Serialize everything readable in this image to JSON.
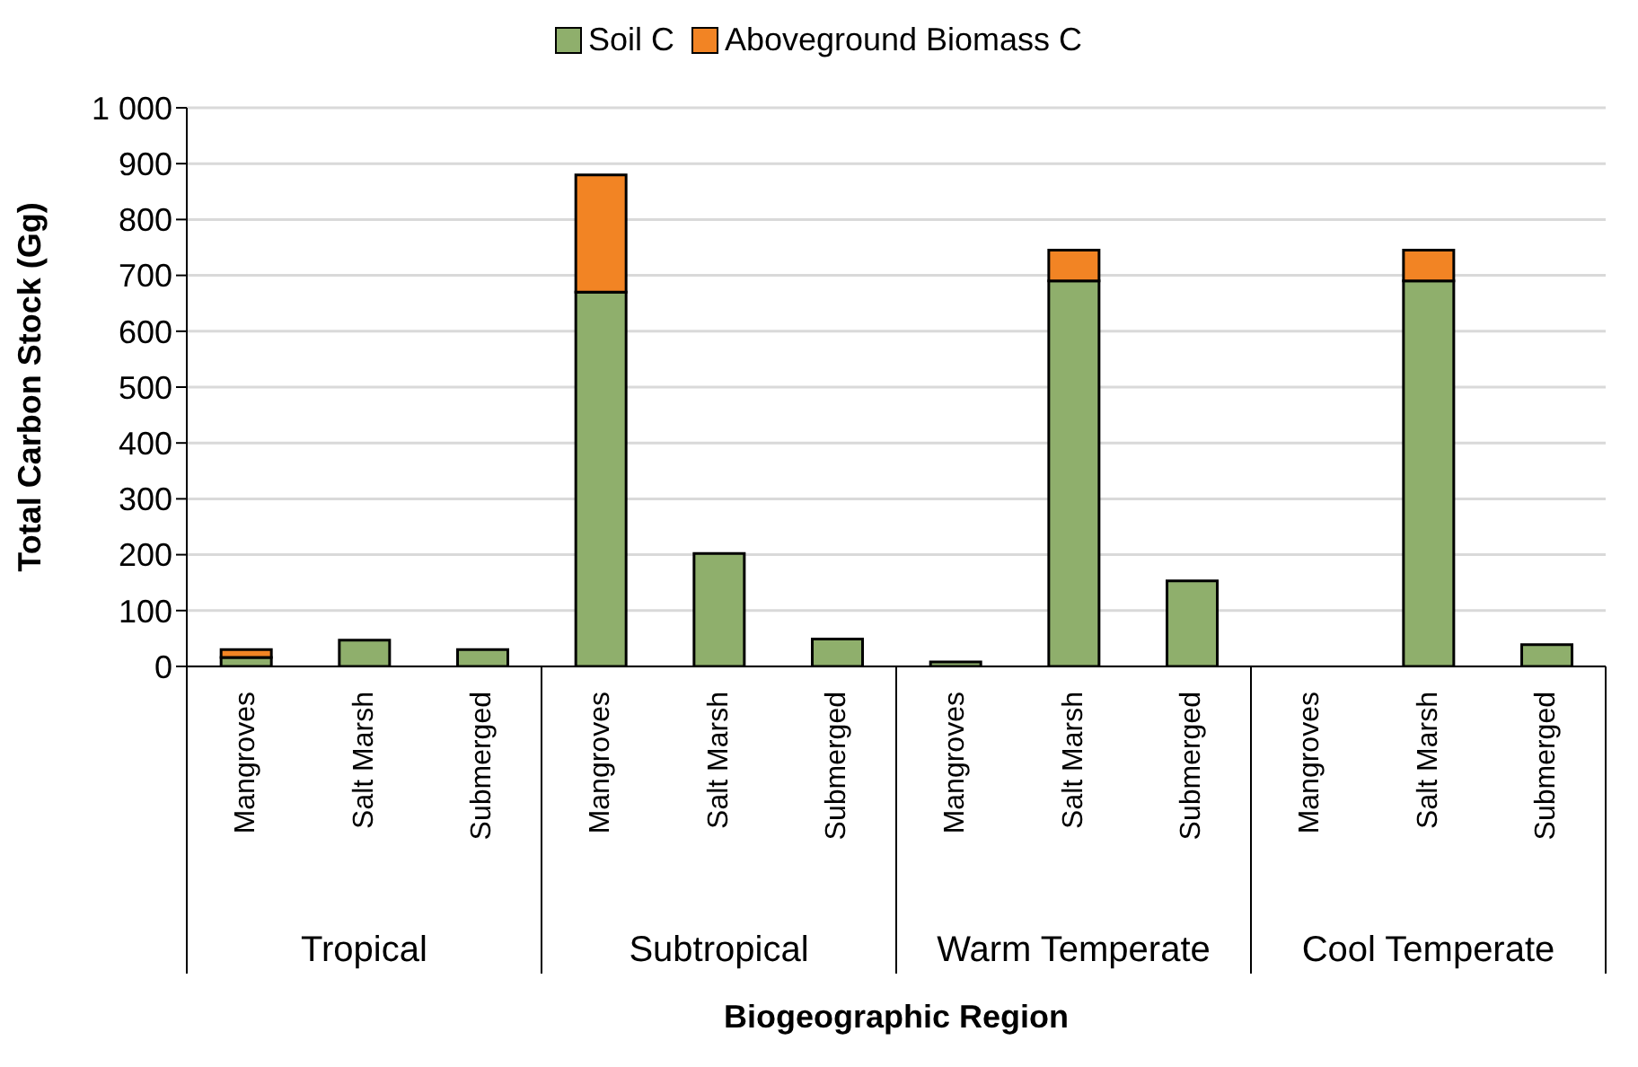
{
  "chart_data": {
    "type": "bar",
    "stacked": true,
    "xlabel": "Biogeographic Region",
    "ylabel": "Total Carbon Stock (Gg)",
    "categories": [
      "Mangroves",
      "Salt Marsh",
      "Submerged",
      "Mangroves",
      "Salt Marsh",
      "Submerged",
      "Mangroves",
      "Salt Marsh",
      "Submerged",
      "Mangroves",
      "Salt Marsh",
      "Submerged"
    ],
    "annotations": [
      "Tropical",
      "Subtropical",
      "Warm Temperate",
      "Cool Temperate"
    ],
    "series": [
      {
        "name": "Soil C",
        "color": "#8faf6c",
        "values": [
          16,
          47,
          30,
          670,
          202,
          49,
          8,
          690,
          153,
          0,
          690,
          39
        ]
      },
      {
        "name": "Aboveground Biomass C",
        "color": "#f28424",
        "values": [
          14,
          0,
          0,
          210,
          0,
          0,
          0,
          55,
          0,
          0,
          55,
          0
        ]
      }
    ],
    "ylim": [
      0,
      1000
    ],
    "yticks": [
      0,
      100,
      200,
      300,
      400,
      500,
      600,
      700,
      800,
      900,
      {
        "value": 1000,
        "label": "1 000"
      }
    ],
    "grid": "y",
    "legend": "top"
  }
}
